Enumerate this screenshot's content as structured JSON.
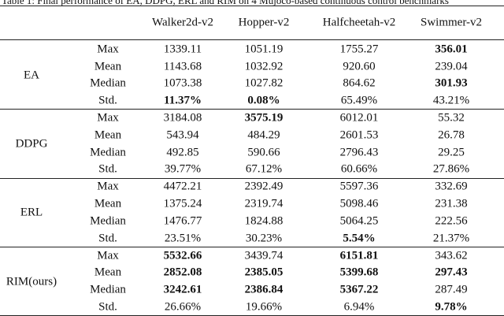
{
  "caption": "Table 1: Final performance of EA, DDPG, ERL and RIM on 4 Mujoco-based continuous control benchmarks",
  "table": {
    "header": [
      "Walker2d-v2",
      "Hopper-v2",
      "Halfcheetah-v2",
      "Swimmer-v2"
    ],
    "groups": [
      {
        "method": "EA",
        "rows": [
          {
            "stat": "Max",
            "cells": [
              {
                "text": "1339.11"
              },
              {
                "text": "1051.19"
              },
              {
                "text": "1755.27"
              },
              {
                "text": "356.01",
                "bold": true
              }
            ]
          },
          {
            "stat": "Mean",
            "cells": [
              {
                "text": "1143.68"
              },
              {
                "text": "1032.92"
              },
              {
                "text": "920.60"
              },
              {
                "text": "239.04"
              }
            ]
          },
          {
            "stat": "Median",
            "cells": [
              {
                "text": "1073.38"
              },
              {
                "text": "1027.82"
              },
              {
                "text": "864.62"
              },
              {
                "text": "301.93",
                "bold": true
              }
            ]
          },
          {
            "stat": "Std.",
            "cells": [
              {
                "text": "11.37%",
                "bold": true
              },
              {
                "text": "0.08%",
                "bold": true
              },
              {
                "text": "65.49%"
              },
              {
                "text": "43.21%"
              }
            ]
          }
        ]
      },
      {
        "method": "DDPG",
        "rows": [
          {
            "stat": "Max",
            "cells": [
              {
                "text": "3184.08"
              },
              {
                "text": "3575.19",
                "bold": true
              },
              {
                "text": "6012.01"
              },
              {
                "text": "55.32"
              }
            ]
          },
          {
            "stat": "Mean",
            "cells": [
              {
                "text": "543.94"
              },
              {
                "text": "484.29"
              },
              {
                "text": "2601.53"
              },
              {
                "text": "26.78"
              }
            ]
          },
          {
            "stat": "Median",
            "cells": [
              {
                "text": "492.85"
              },
              {
                "text": "590.66"
              },
              {
                "text": "2796.43"
              },
              {
                "text": "29.25"
              }
            ]
          },
          {
            "stat": "Std.",
            "cells": [
              {
                "text": "39.77%"
              },
              {
                "text": "67.12%"
              },
              {
                "text": "60.66%"
              },
              {
                "text": "27.86%"
              }
            ]
          }
        ]
      },
      {
        "method": "ERL",
        "rows": [
          {
            "stat": "Max",
            "cells": [
              {
                "text": "4472.21"
              },
              {
                "text": "2392.49"
              },
              {
                "text": "5597.36"
              },
              {
                "text": "332.69"
              }
            ]
          },
          {
            "stat": "Mean",
            "cells": [
              {
                "text": "1375.24"
              },
              {
                "text": "2319.74"
              },
              {
                "text": "5098.46"
              },
              {
                "text": "231.38"
              }
            ]
          },
          {
            "stat": "Median",
            "cells": [
              {
                "text": "1476.77"
              },
              {
                "text": "1824.88"
              },
              {
                "text": "5064.25"
              },
              {
                "text": "222.56"
              }
            ]
          },
          {
            "stat": "Std.",
            "cells": [
              {
                "text": "23.51%"
              },
              {
                "text": "30.23%"
              },
              {
                "text": "5.54%",
                "bold": true
              },
              {
                "text": "21.37%"
              }
            ]
          }
        ]
      },
      {
        "method": "RIM(ours)",
        "rows": [
          {
            "stat": "Max",
            "cells": [
              {
                "text": "5532.66",
                "bold": true
              },
              {
                "text": "3439.74"
              },
              {
                "text": "6151.81",
                "bold": true
              },
              {
                "text": "343.62"
              }
            ]
          },
          {
            "stat": "Mean",
            "cells": [
              {
                "text": "2852.08",
                "bold": true
              },
              {
                "text": "2385.05",
                "bold": true
              },
              {
                "text": "5399.68",
                "bold": true
              },
              {
                "text": "297.43",
                "bold": true
              }
            ]
          },
          {
            "stat": "Median",
            "cells": [
              {
                "text": "3242.61",
                "bold": true
              },
              {
                "text": "2386.84",
                "bold": true
              },
              {
                "text": "5367.22",
                "bold": true
              },
              {
                "text": "287.49"
              }
            ]
          },
          {
            "stat": "Std.",
            "cells": [
              {
                "text": "26.66%"
              },
              {
                "text": "19.66%"
              },
              {
                "text": "6.94%"
              },
              {
                "text": "9.78%",
                "bold": true
              }
            ]
          }
        ]
      }
    ]
  }
}
